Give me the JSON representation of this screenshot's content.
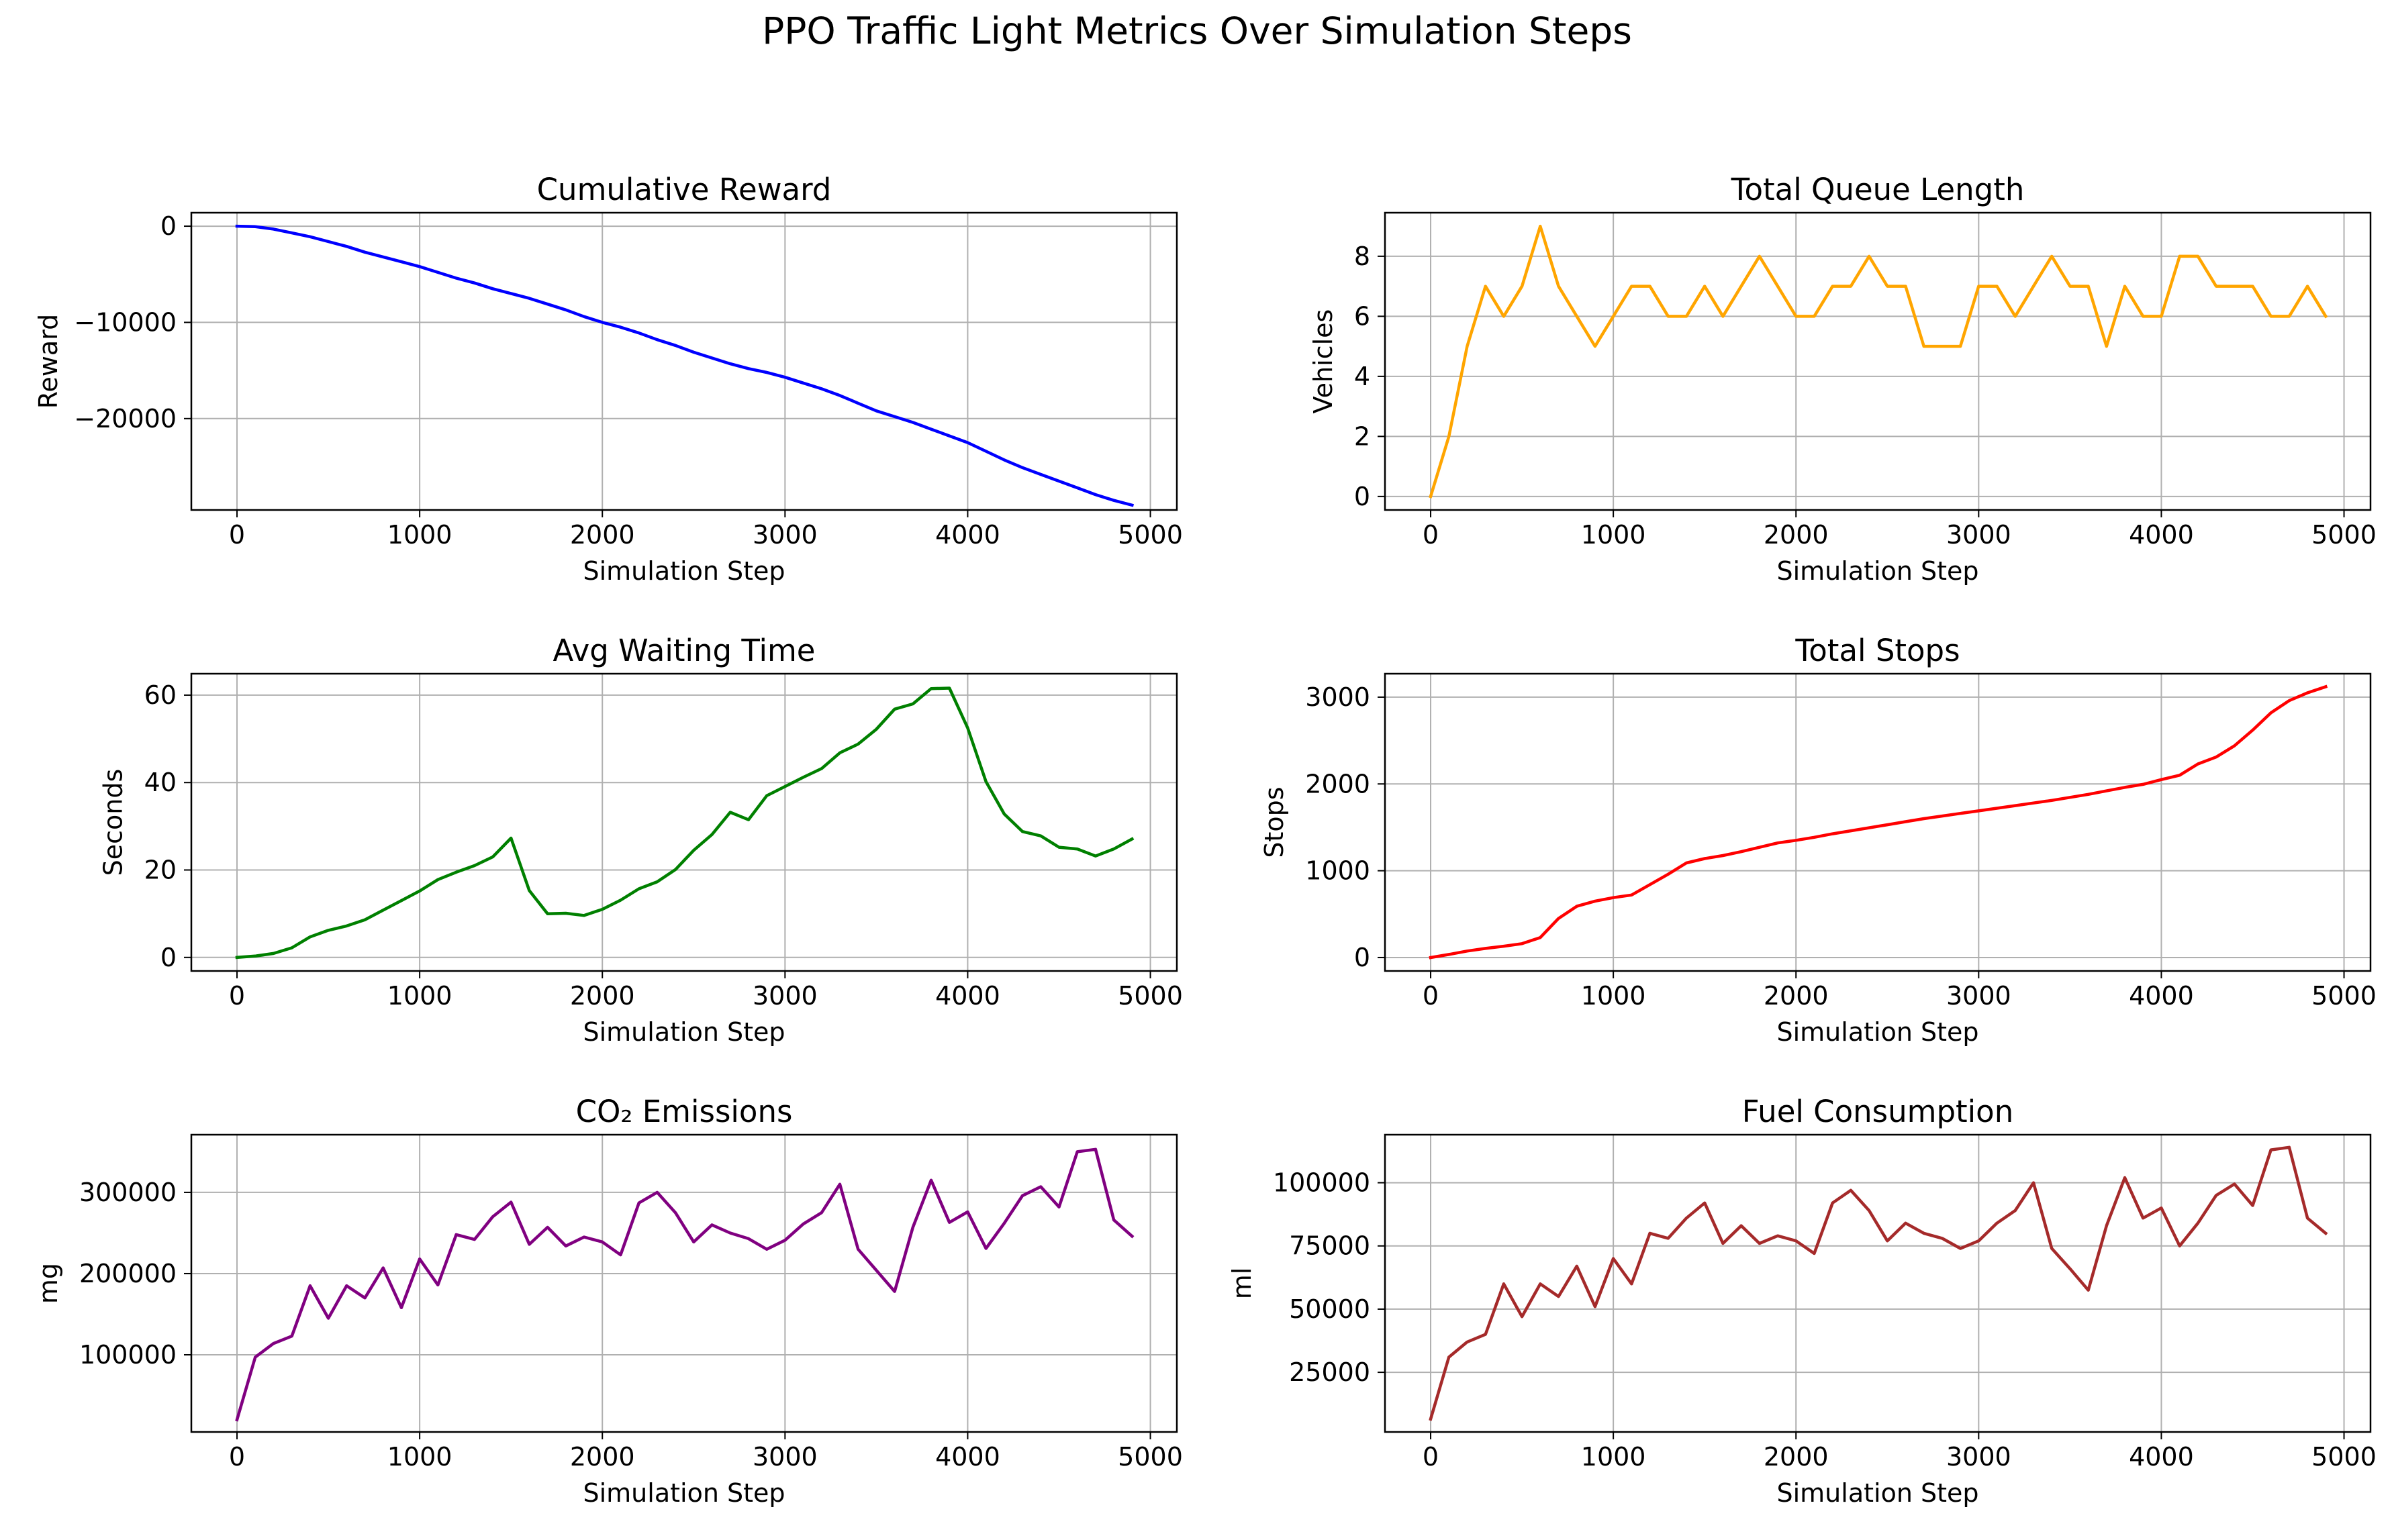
{
  "figure": {
    "title": "PPO Traffic Light Metrics Over Simulation Steps"
  },
  "chart_data": [
    {
      "type": "line",
      "title": "Cumulative Reward",
      "xlabel": "Simulation Step",
      "ylabel": "Reward",
      "color": "#0000ff",
      "grid": true,
      "xlim": [
        -250,
        5145
      ],
      "ylim": [
        -29500,
        1400
      ],
      "xticks": [
        0,
        1000,
        2000,
        3000,
        4000,
        5000
      ],
      "yticks": [
        0,
        -10000,
        -20000
      ],
      "series": [
        {
          "x": [
            0,
            100,
            200,
            300,
            400,
            500,
            600,
            700,
            800,
            900,
            1000,
            1100,
            1200,
            1300,
            1400,
            1500,
            1600,
            1700,
            1800,
            1900,
            2000,
            2100,
            2200,
            2300,
            2400,
            2500,
            2600,
            2700,
            2800,
            2900,
            3000,
            3100,
            3200,
            3300,
            3400,
            3500,
            3600,
            3700,
            3800,
            3900,
            4000,
            4100,
            4200,
            4300,
            4400,
            4500,
            4600,
            4700,
            4800,
            4900
          ],
          "y": [
            0,
            -50,
            -300,
            -700,
            -1100,
            -1600,
            -2100,
            -2700,
            -3200,
            -3700,
            -4200,
            -4800,
            -5400,
            -5900,
            -6500,
            -7000,
            -7500,
            -8100,
            -8700,
            -9400,
            -10000,
            -10500,
            -11100,
            -11800,
            -12400,
            -13100,
            -13700,
            -14300,
            -14800,
            -15200,
            -15700,
            -16300,
            -16900,
            -17600,
            -18400,
            -19200,
            -19800,
            -20400,
            -21100,
            -21800,
            -22500,
            -23400,
            -24300,
            -25100,
            -25800,
            -26500,
            -27200,
            -27900,
            -28500,
            -29000
          ]
        }
      ]
    },
    {
      "type": "line",
      "title": "Total Queue Length",
      "xlabel": "Simulation Step",
      "ylabel": "Vehicles",
      "color": "#ffa500",
      "grid": true,
      "xlim": [
        -250,
        5145
      ],
      "ylim": [
        -0.45,
        9.45
      ],
      "xticks": [
        0,
        1000,
        2000,
        3000,
        4000,
        5000
      ],
      "yticks": [
        0,
        2,
        4,
        6,
        8
      ],
      "series": [
        {
          "x": [
            0,
            100,
            200,
            300,
            400,
            500,
            600,
            700,
            800,
            900,
            1000,
            1100,
            1200,
            1300,
            1400,
            1500,
            1600,
            1700,
            1800,
            1900,
            2000,
            2100,
            2200,
            2300,
            2400,
            2500,
            2600,
            2700,
            2800,
            2900,
            3000,
            3100,
            3200,
            3300,
            3400,
            3500,
            3600,
            3700,
            3800,
            3900,
            4000,
            4100,
            4200,
            4300,
            4400,
            4500,
            4600,
            4700,
            4800,
            4900
          ],
          "y": [
            0,
            2,
            5,
            7,
            6,
            7,
            9,
            7,
            6,
            5,
            6,
            7,
            7,
            6,
            6,
            7,
            6,
            7,
            8,
            7,
            6,
            6,
            7,
            7,
            8,
            7,
            7,
            5,
            5,
            5,
            7,
            7,
            6,
            7,
            8,
            7,
            7,
            5,
            7,
            6,
            6,
            8,
            8,
            7,
            7,
            7,
            6,
            6,
            7,
            6
          ]
        }
      ]
    },
    {
      "type": "line",
      "title": "Avg Waiting Time",
      "xlabel": "Simulation Step",
      "ylabel": "Seconds",
      "color": "#008000",
      "grid": true,
      "xlim": [
        -250,
        5145
      ],
      "ylim": [
        -3.1,
        64.9
      ],
      "xticks": [
        0,
        1000,
        2000,
        3000,
        4000,
        5000
      ],
      "yticks": [
        0,
        20,
        40,
        60
      ],
      "series": [
        {
          "x": [
            0,
            100,
            200,
            300,
            400,
            500,
            600,
            700,
            800,
            900,
            1000,
            1100,
            1200,
            1300,
            1400,
            1500,
            1600,
            1700,
            1800,
            1900,
            2000,
            2100,
            2200,
            2300,
            2400,
            2500,
            2600,
            2700,
            2800,
            2900,
            3000,
            3100,
            3200,
            3300,
            3400,
            3500,
            3600,
            3700,
            3800,
            3900,
            4000,
            4100,
            4200,
            4300,
            4400,
            4500,
            4600,
            4700,
            4800,
            4900
          ],
          "y": [
            0,
            0.3,
            0.9,
            2.2,
            4.7,
            6.2,
            7.2,
            8.6,
            10.8,
            13,
            15.2,
            17.8,
            19.5,
            21,
            23,
            27.3,
            15.3,
            10,
            10.1,
            9.6,
            11,
            13.1,
            15.7,
            17.3,
            20.1,
            24.5,
            28.1,
            33.2,
            31.5,
            37,
            39.1,
            41.2,
            43.2,
            46.8,
            48.8,
            52.2,
            56.8,
            58,
            61.5,
            61.6,
            52.5,
            40.2,
            32.8,
            28.8,
            27.8,
            25.2,
            24.8,
            23.2,
            24.8,
            27.1
          ]
        }
      ]
    },
    {
      "type": "line",
      "title": "Total Stops",
      "xlabel": "Simulation Step",
      "ylabel": "Stops",
      "color": "#ff0000",
      "grid": true,
      "xlim": [
        -250,
        5145
      ],
      "ylim": [
        -155,
        3270
      ],
      "xticks": [
        0,
        1000,
        2000,
        3000,
        4000,
        5000
      ],
      "yticks": [
        0,
        1000,
        2000,
        3000
      ],
      "series": [
        {
          "x": [
            0,
            100,
            200,
            300,
            400,
            500,
            600,
            700,
            800,
            900,
            1000,
            1100,
            1200,
            1300,
            1400,
            1500,
            1600,
            1700,
            1800,
            1900,
            2000,
            2100,
            2200,
            2300,
            2400,
            2500,
            2600,
            2700,
            2800,
            2900,
            3000,
            3100,
            3200,
            3300,
            3400,
            3500,
            3600,
            3700,
            3800,
            3900,
            4000,
            4100,
            4200,
            4300,
            4400,
            4500,
            4600,
            4700,
            4800,
            4900
          ],
          "y": [
            0,
            35,
            75,
            105,
            130,
            160,
            230,
            450,
            590,
            650,
            690,
            720,
            840,
            960,
            1090,
            1140,
            1175,
            1220,
            1270,
            1320,
            1350,
            1385,
            1425,
            1460,
            1495,
            1530,
            1565,
            1600,
            1630,
            1660,
            1690,
            1720,
            1750,
            1780,
            1810,
            1845,
            1880,
            1920,
            1960,
            1995,
            2050,
            2100,
            2230,
            2310,
            2440,
            2620,
            2820,
            2960,
            3050,
            3120
          ]
        }
      ]
    },
    {
      "type": "line",
      "title": "CO₂ Emissions",
      "xlabel": "Simulation Step",
      "ylabel": "mg",
      "color": "#800080",
      "grid": true,
      "xlim": [
        -250,
        5145
      ],
      "ylim": [
        5000,
        371000
      ],
      "xticks": [
        0,
        1000,
        2000,
        3000,
        4000,
        5000
      ],
      "yticks": [
        100000,
        200000,
        300000
      ],
      "series": [
        {
          "x": [
            0,
            100,
            200,
            300,
            400,
            500,
            600,
            700,
            800,
            900,
            1000,
            1100,
            1200,
            1300,
            1400,
            1500,
            1600,
            1700,
            1800,
            1900,
            2000,
            2100,
            2200,
            2300,
            2400,
            2500,
            2600,
            2700,
            2800,
            2900,
            3000,
            3100,
            3200,
            3300,
            3400,
            3500,
            3600,
            3700,
            3800,
            3900,
            4000,
            4100,
            4200,
            4300,
            4400,
            4500,
            4600,
            4700,
            4800,
            4900
          ],
          "y": [
            20000,
            97000,
            114000,
            123000,
            185000,
            145000,
            185000,
            170000,
            207000,
            158000,
            218000,
            186000,
            248000,
            242000,
            270000,
            288000,
            236000,
            257000,
            234000,
            245000,
            239000,
            223000,
            287000,
            300000,
            275000,
            239000,
            260000,
            250000,
            243000,
            230000,
            241000,
            261000,
            275000,
            310000,
            230000,
            204000,
            178000,
            257000,
            315000,
            263000,
            276000,
            231000,
            262000,
            296000,
            307000,
            282000,
            350000,
            353000,
            266000,
            246000
          ]
        }
      ]
    },
    {
      "type": "line",
      "title": "Fuel Consumption",
      "xlabel": "Simulation Step",
      "ylabel": "ml",
      "color": "#a52a2a",
      "grid": true,
      "xlim": [
        -250,
        5145
      ],
      "ylim": [
        1400,
        119000
      ],
      "xticks": [
        0,
        1000,
        2000,
        3000,
        4000,
        5000
      ],
      "yticks": [
        25000,
        50000,
        75000,
        100000
      ],
      "series": [
        {
          "x": [
            0,
            100,
            200,
            300,
            400,
            500,
            600,
            700,
            800,
            900,
            1000,
            1100,
            1200,
            1300,
            1400,
            1500,
            1600,
            1700,
            1800,
            1900,
            2000,
            2100,
            2200,
            2300,
            2400,
            2500,
            2600,
            2700,
            2800,
            2900,
            3000,
            3100,
            3200,
            3300,
            3400,
            3500,
            3600,
            3700,
            3800,
            3900,
            4000,
            4100,
            4200,
            4300,
            4400,
            4500,
            4600,
            4700,
            4800,
            4900
          ],
          "y": [
            6500,
            31000,
            37000,
            40000,
            60000,
            47000,
            60000,
            55000,
            67000,
            51000,
            70000,
            60000,
            80000,
            78000,
            86000,
            92000,
            76000,
            83000,
            76000,
            79000,
            77000,
            72000,
            92000,
            97000,
            89000,
            77000,
            84000,
            80000,
            78000,
            74000,
            77000,
            84000,
            89000,
            100000,
            74000,
            66000,
            57500,
            83000,
            102000,
            86000,
            90000,
            75000,
            84000,
            95000,
            99500,
            91000,
            113000,
            114000,
            86000,
            80000
          ]
        }
      ]
    }
  ]
}
